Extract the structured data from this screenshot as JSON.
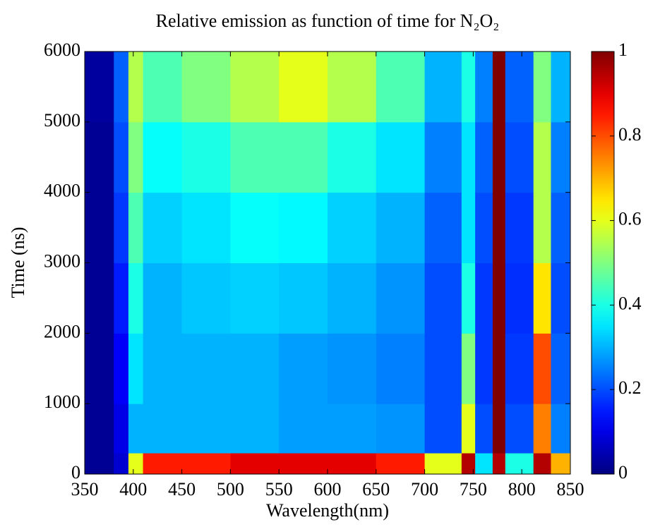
{
  "chart_data": {
    "type": "heatmap",
    "title": "Relative emission as function of time for N₂O₂",
    "x_label": "Wavelength(nm)",
    "y_label": "Time (ns)",
    "x": [
      350,
      380,
      395,
      410,
      450,
      500,
      550,
      600,
      650,
      700,
      738,
      752,
      770,
      783,
      812,
      830,
      850
    ],
    "y": [
      0,
      300,
      1000,
      2000,
      3000,
      4000,
      5000,
      6000
    ],
    "z": [
      [
        0.02,
        0.08,
        0.6,
        0.85,
        0.85,
        0.9,
        0.9,
        0.9,
        0.85,
        0.6,
        0.95,
        0.35,
        0.95,
        0.4,
        0.95,
        0.7
      ],
      [
        0.02,
        0.1,
        0.3,
        0.3,
        0.3,
        0.3,
        0.28,
        0.28,
        0.27,
        0.2,
        0.6,
        0.2,
        1,
        0.2,
        0.75,
        0.25
      ],
      [
        0.02,
        0.12,
        0.35,
        0.3,
        0.3,
        0.3,
        0.28,
        0.27,
        0.25,
        0.2,
        0.5,
        0.18,
        1,
        0.18,
        0.8,
        0.22
      ],
      [
        0.02,
        0.15,
        0.4,
        0.3,
        0.32,
        0.33,
        0.32,
        0.3,
        0.27,
        0.2,
        0.4,
        0.18,
        1,
        0.17,
        0.65,
        0.2
      ],
      [
        0.02,
        0.18,
        0.45,
        0.33,
        0.35,
        0.38,
        0.37,
        0.33,
        0.3,
        0.22,
        0.35,
        0.2,
        1,
        0.18,
        0.55,
        0.22
      ],
      [
        0.02,
        0.2,
        0.5,
        0.38,
        0.4,
        0.45,
        0.45,
        0.4,
        0.35,
        0.25,
        0.35,
        0.22,
        1,
        0.2,
        0.55,
        0.25
      ],
      [
        0.03,
        0.22,
        0.55,
        0.45,
        0.5,
        0.55,
        0.6,
        0.55,
        0.45,
        0.3,
        0.4,
        0.25,
        1,
        0.22,
        0.5,
        0.3
      ]
    ],
    "xlim": [
      350,
      850
    ],
    "xticks": [
      350,
      400,
      450,
      500,
      550,
      600,
      650,
      700,
      750,
      800,
      850
    ],
    "ylim": [
      0,
      6000
    ],
    "yticks": [
      0,
      1000,
      2000,
      3000,
      4000,
      5000,
      6000
    ],
    "colormap": "jet",
    "clim": [
      0,
      1
    ],
    "cticks": [
      0,
      0.2,
      0.4,
      0.6,
      0.8,
      1
    ]
  }
}
